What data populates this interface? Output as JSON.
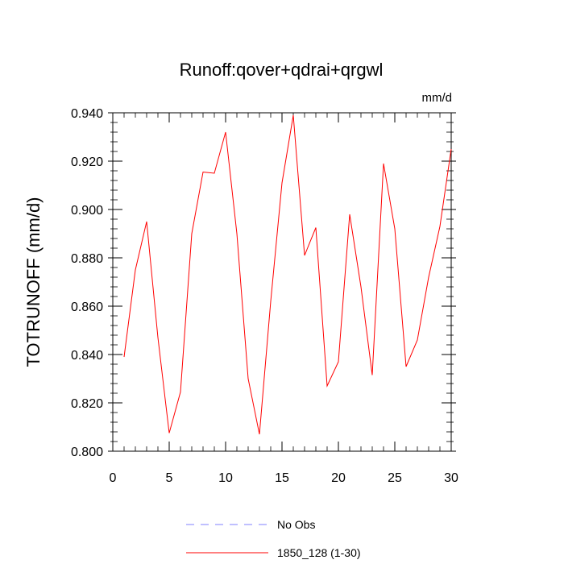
{
  "chart_data": {
    "type": "line",
    "title": "Runoff:qover+qdrai+qrgwl",
    "units": "mm/d",
    "xlabel": "",
    "ylabel": "TOTRUNOFF  (mm/d)",
    "xlim": [
      0,
      30
    ],
    "ylim": [
      0.8,
      0.94
    ],
    "x_ticks": [
      0,
      5,
      10,
      15,
      20,
      25,
      30
    ],
    "y_ticks": [
      0.8,
      0.82,
      0.84,
      0.86,
      0.88,
      0.9,
      0.92,
      0.94
    ],
    "y_tick_labels": [
      "0.800",
      "0.820",
      "0.840",
      "0.860",
      "0.880",
      "0.900",
      "0.920",
      "0.940"
    ],
    "x_tick_labels": [
      "0",
      "5",
      "10",
      "15",
      "20",
      "25",
      "30"
    ],
    "grid": false,
    "legend_position": "bottom",
    "series": [
      {
        "name": "No Obs",
        "color": "#8080ff",
        "dash": true,
        "x": [],
        "values": []
      },
      {
        "name": "1850_128 (1-30)",
        "color": "#ff0000",
        "dash": false,
        "x": [
          1,
          2,
          3,
          4,
          5,
          6,
          7,
          8,
          9,
          10,
          11,
          12,
          13,
          14,
          15,
          16,
          17,
          18,
          19,
          20,
          21,
          22,
          23,
          24,
          25,
          26,
          27,
          28,
          29,
          30
        ],
        "values": [
          0.839,
          0.875,
          0.895,
          0.847,
          0.8075,
          0.8245,
          0.89,
          0.9155,
          0.915,
          0.932,
          0.89,
          0.83,
          0.807,
          0.862,
          0.911,
          0.939,
          0.881,
          0.8925,
          0.827,
          0.837,
          0.898,
          0.868,
          0.8315,
          0.919,
          0.892,
          0.835,
          0.846,
          0.872,
          0.893,
          0.925
        ]
      }
    ]
  }
}
